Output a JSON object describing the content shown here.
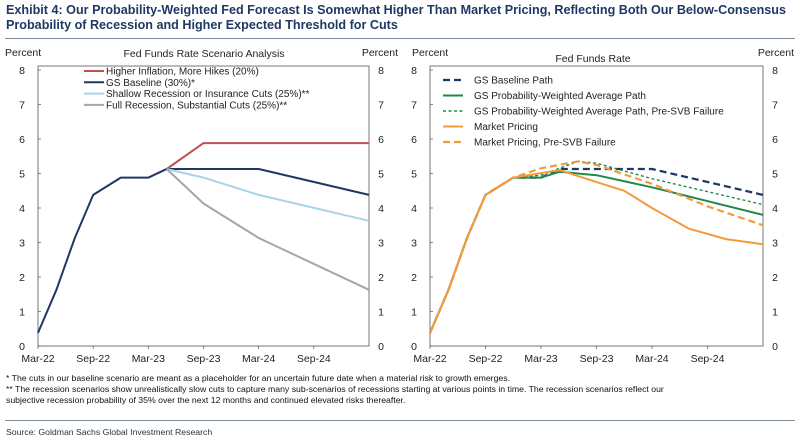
{
  "title_line1": "Exhibit 4: Our Probability-Weighted Fed Forecast Is Somewhat Higher Than Market Pricing, Reflecting Both Our Below-Consensus",
  "title_line2": "Probability of Recession and Higher Expected Threshold for Cuts",
  "notes": [
    "* The cuts in our baseline scenario are meant as a placeholder for an uncertain future date when a material risk to growth emerges.",
    "** The recession scenarios show unrealistically slow cuts to capture many sub-scenarios of recessions starting at various points in time.  The recession scenarios reflect our",
    "subjective recession probability of 35% over the next 12 months and continued elevated risks thereafter."
  ],
  "source": "Source: Goldman Sachs Global Investment Research",
  "chart_data": [
    {
      "type": "line",
      "title": "Fed Funds Rate Scenario Analysis",
      "ylabel_left": "Percent",
      "ylabel_right": "Percent",
      "ylim": [
        0,
        8
      ],
      "yticks": [
        0,
        1,
        2,
        3,
        4,
        5,
        6,
        7,
        8
      ],
      "xlim": [
        "2022-03",
        "2025-03"
      ],
      "xticks": [
        "Mar-22",
        "Sep-22",
        "Mar-23",
        "Sep-23",
        "Mar-24",
        "Sep-24"
      ],
      "legend_position": "top",
      "series": [
        {
          "name": "Higher Inflation, More Hikes (20%)",
          "color": "#c0504d",
          "dash": "solid",
          "points": [
            [
              "2023-03",
              4.88
            ],
            [
              "2023-05",
              5.13
            ],
            [
              "2023-09",
              5.88
            ],
            [
              "2025-03",
              5.88
            ]
          ]
        },
        {
          "name": "GS Baseline (30%)*",
          "color": "#1f3864",
          "dash": "solid",
          "points": [
            [
              "2022-03",
              0.38
            ],
            [
              "2022-05",
              1.63
            ],
            [
              "2022-07",
              3.13
            ],
            [
              "2022-09",
              4.38
            ],
            [
              "2022-12",
              4.88
            ],
            [
              "2023-03",
              4.88
            ],
            [
              "2023-05",
              5.13
            ],
            [
              "2024-03",
              5.13
            ],
            [
              "2025-03",
              4.38
            ]
          ]
        },
        {
          "name": "Shallow Recession or Insurance Cuts (25%)**",
          "color": "#a9d3ea",
          "dash": "solid",
          "points": [
            [
              "2023-05",
              5.13
            ],
            [
              "2023-09",
              4.88
            ],
            [
              "2024-03",
              4.38
            ],
            [
              "2025-03",
              3.63
            ]
          ]
        },
        {
          "name": "Full Recession, Substantial Cuts (25%)**",
          "color": "#a6a6a6",
          "dash": "solid",
          "points": [
            [
              "2023-05",
              5.13
            ],
            [
              "2023-09",
              4.13
            ],
            [
              "2024-03",
              3.13
            ],
            [
              "2025-03",
              1.63
            ]
          ]
        }
      ]
    },
    {
      "type": "line",
      "title": "Fed Funds Rate",
      "ylabel_left": "Percent",
      "ylabel_right": "Percent",
      "ylim": [
        0,
        8
      ],
      "yticks": [
        0,
        1,
        2,
        3,
        4,
        5,
        6,
        7,
        8
      ],
      "xlim": [
        "2022-03",
        "2025-03"
      ],
      "xticks": [
        "Mar-22",
        "Sep-22",
        "Mar-23",
        "Sep-23",
        "Mar-24",
        "Sep-24"
      ],
      "legend_position": "top",
      "series": [
        {
          "name": "GS Baseline Path",
          "color": "#1f3864",
          "dash": "dashed",
          "points": [
            [
              "2022-03",
              0.38
            ],
            [
              "2022-05",
              1.63
            ],
            [
              "2022-07",
              3.13
            ],
            [
              "2022-09",
              4.38
            ],
            [
              "2022-12",
              4.88
            ],
            [
              "2023-03",
              4.88
            ],
            [
              "2023-05",
              5.13
            ],
            [
              "2024-03",
              5.13
            ],
            [
              "2025-03",
              4.38
            ]
          ]
        },
        {
          "name": "GS Probability-Weighted Average Path",
          "color": "#1e8a4c",
          "dash": "solid",
          "points": [
            [
              "2022-03",
              0.38
            ],
            [
              "2022-05",
              1.63
            ],
            [
              "2022-07",
              3.13
            ],
            [
              "2022-09",
              4.38
            ],
            [
              "2022-12",
              4.88
            ],
            [
              "2023-03",
              4.88
            ],
            [
              "2023-05",
              5.05
            ],
            [
              "2023-09",
              4.95
            ],
            [
              "2024-03",
              4.6
            ],
            [
              "2025-03",
              3.8
            ]
          ]
        },
        {
          "name": "GS Probability-Weighted Average Path, Pre-SVB Failure",
          "color": "#1e8a4c",
          "dash": "dotted",
          "points": [
            [
              "2022-03",
              0.38
            ],
            [
              "2022-05",
              1.63
            ],
            [
              "2022-07",
              3.13
            ],
            [
              "2022-09",
              4.38
            ],
            [
              "2022-12",
              4.88
            ],
            [
              "2023-03",
              4.95
            ],
            [
              "2023-07",
              5.35
            ],
            [
              "2023-09",
              5.3
            ],
            [
              "2024-03",
              4.85
            ],
            [
              "2025-03",
              4.1
            ]
          ]
        },
        {
          "name": "Market Pricing",
          "color": "#f39a3d",
          "dash": "solid",
          "points": [
            [
              "2022-03",
              0.38
            ],
            [
              "2022-05",
              1.63
            ],
            [
              "2022-07",
              3.13
            ],
            [
              "2022-09",
              4.38
            ],
            [
              "2022-12",
              4.88
            ],
            [
              "2023-05",
              5.1
            ],
            [
              "2023-09",
              4.75
            ],
            [
              "2023-12",
              4.5
            ],
            [
              "2024-03",
              4.0
            ],
            [
              "2024-07",
              3.4
            ],
            [
              "2024-11",
              3.1
            ],
            [
              "2025-03",
              2.95
            ]
          ]
        },
        {
          "name": "Market Pricing, Pre-SVB Failure",
          "color": "#f39a3d",
          "dash": "dashed",
          "points": [
            [
              "2022-03",
              0.38
            ],
            [
              "2022-05",
              1.63
            ],
            [
              "2022-07",
              3.13
            ],
            [
              "2022-09",
              4.38
            ],
            [
              "2022-12",
              4.88
            ],
            [
              "2023-03",
              5.15
            ],
            [
              "2023-07",
              5.35
            ],
            [
              "2023-09",
              5.25
            ],
            [
              "2024-03",
              4.7
            ],
            [
              "2024-09",
              4.05
            ],
            [
              "2025-03",
              3.5
            ]
          ]
        }
      ]
    }
  ]
}
